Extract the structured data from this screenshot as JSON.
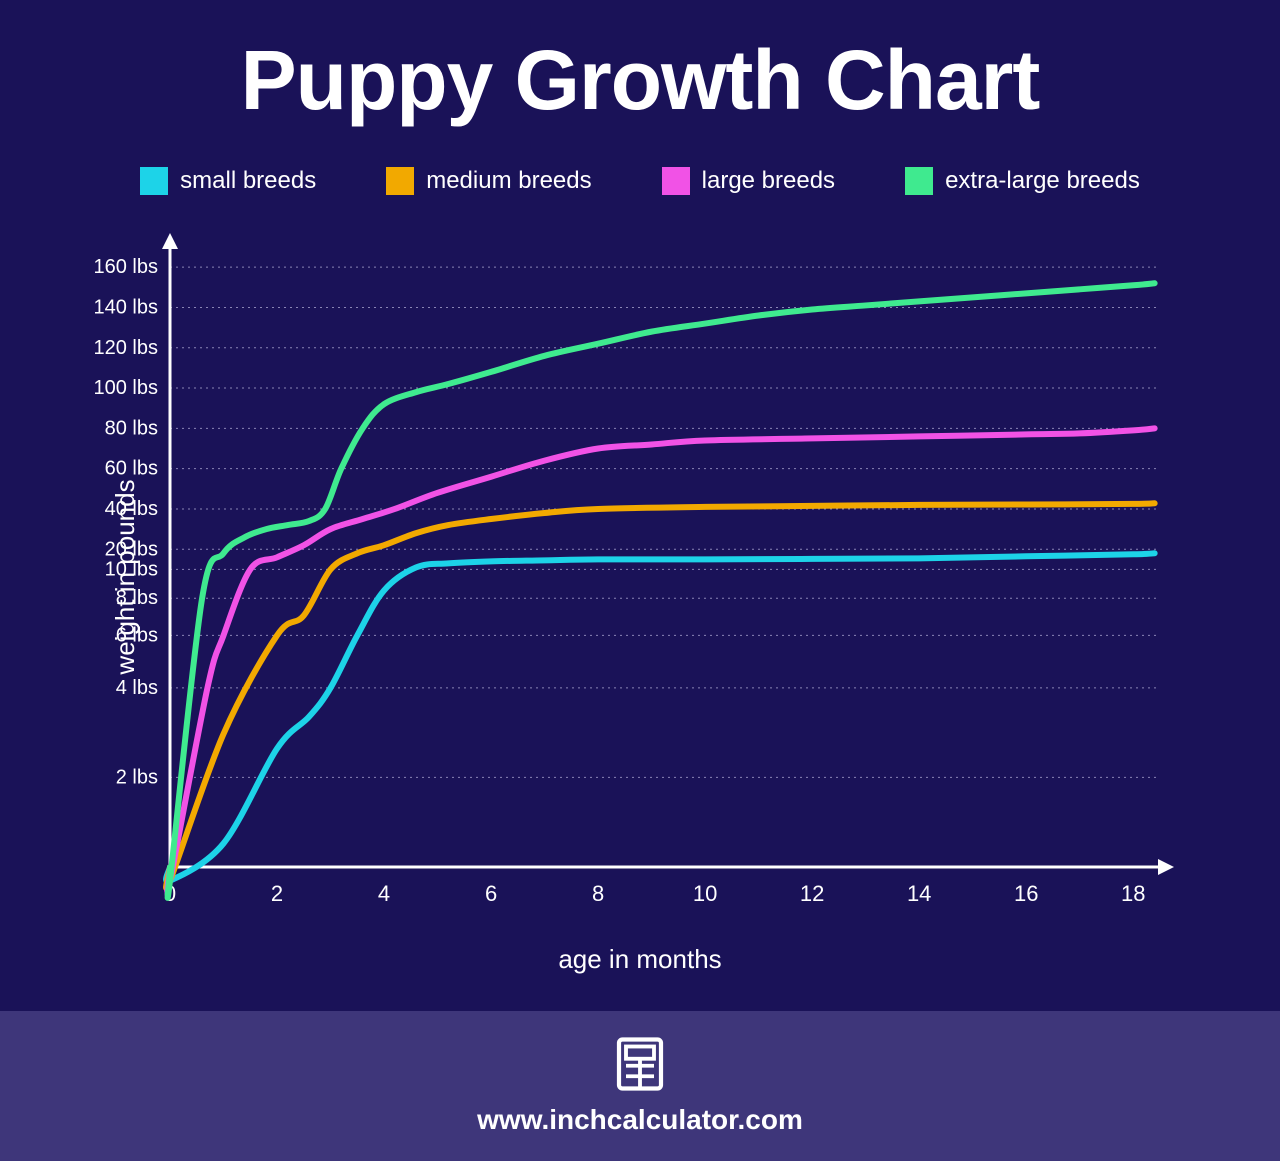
{
  "title": "Puppy Growth Chart",
  "background_color": "#1a1258",
  "footer_background_color": "#3e367a",
  "text_color": "#ffffff",
  "grid_color": "#8a85b5",
  "axis_color": "#ffffff",
  "chart": {
    "type": "line",
    "xlabel": "age in months",
    "ylabel": "weight in pounds",
    "x_ticks": [
      0,
      2,
      4,
      6,
      8,
      10,
      12,
      14,
      16,
      18
    ],
    "x_min": 0,
    "x_max": 18.5,
    "y_ticks": [
      2,
      4,
      6,
      8,
      10,
      20,
      40,
      60,
      80,
      100,
      120,
      140,
      160
    ],
    "y_tick_labels": [
      "2 lbs",
      "4 lbs",
      "6 lbs",
      "8 lbs",
      "10 lbs",
      "20 lbs",
      "40 lbs",
      "60 lbs",
      "80 lbs",
      "100 lbs",
      "120 lbs",
      "140 lbs",
      "160 lbs"
    ],
    "y_scale": "log_with_linear_top",
    "line_width": 6,
    "series": [
      {
        "name": "small breeds",
        "color": "#1dd3e8",
        "points": [
          [
            0,
            0.5
          ],
          [
            1,
            1.2
          ],
          [
            2,
            2.5
          ],
          [
            2.6,
            3.2
          ],
          [
            3,
            4
          ],
          [
            3.5,
            6
          ],
          [
            4,
            8.5
          ],
          [
            4.6,
            11
          ],
          [
            5.2,
            13
          ],
          [
            6,
            14
          ],
          [
            7,
            14.5
          ],
          [
            8,
            15
          ],
          [
            10,
            15
          ],
          [
            12,
            15.2
          ],
          [
            14,
            15.5
          ],
          [
            16,
            16.5
          ],
          [
            18,
            17.5
          ],
          [
            18.4,
            18
          ]
        ]
      },
      {
        "name": "medium breeds",
        "color": "#f2a900",
        "points": [
          [
            0,
            0.5
          ],
          [
            1,
            2.8
          ],
          [
            2,
            6
          ],
          [
            2.5,
            7
          ],
          [
            3,
            10
          ],
          [
            3.5,
            18
          ],
          [
            4,
            22
          ],
          [
            4.6,
            28
          ],
          [
            5.2,
            32
          ],
          [
            6,
            35
          ],
          [
            7,
            38
          ],
          [
            8,
            40
          ],
          [
            10,
            41
          ],
          [
            12,
            41.5
          ],
          [
            14,
            42
          ],
          [
            16,
            42.2
          ],
          [
            18,
            42.5
          ],
          [
            18.4,
            42.8
          ]
        ]
      },
      {
        "name": "large breeds",
        "color": "#f152e6",
        "points": [
          [
            0,
            0.5
          ],
          [
            0.7,
            4
          ],
          [
            1,
            6
          ],
          [
            1.5,
            10
          ],
          [
            2,
            16
          ],
          [
            2.5,
            22
          ],
          [
            3,
            30
          ],
          [
            3.6,
            35
          ],
          [
            4.2,
            40
          ],
          [
            5,
            48
          ],
          [
            6,
            56
          ],
          [
            7,
            64
          ],
          [
            8,
            70
          ],
          [
            9,
            72
          ],
          [
            10,
            74
          ],
          [
            12,
            75
          ],
          [
            14,
            76
          ],
          [
            16,
            77
          ],
          [
            17,
            77.5
          ],
          [
            18,
            79
          ],
          [
            18.4,
            80
          ]
        ]
      },
      {
        "name": "extra-large breeds",
        "color": "#3fea8f",
        "points": [
          [
            0,
            0.5
          ],
          [
            0.6,
            8
          ],
          [
            1,
            18
          ],
          [
            1.4,
            26
          ],
          [
            1.8,
            30
          ],
          [
            2.2,
            32
          ],
          [
            2.6,
            34
          ],
          [
            2.9,
            40
          ],
          [
            3.2,
            60
          ],
          [
            3.6,
            80
          ],
          [
            4,
            92
          ],
          [
            4.6,
            98
          ],
          [
            5.2,
            102
          ],
          [
            6,
            108
          ],
          [
            7,
            116
          ],
          [
            8,
            122
          ],
          [
            9,
            128
          ],
          [
            10,
            132
          ],
          [
            11,
            136
          ],
          [
            12,
            139
          ],
          [
            13,
            141
          ],
          [
            14,
            143
          ],
          [
            15,
            145
          ],
          [
            16,
            147
          ],
          [
            17,
            149
          ],
          [
            18,
            151
          ],
          [
            18.4,
            152
          ]
        ]
      }
    ]
  },
  "legend": [
    {
      "label": "small breeds",
      "color": "#1dd3e8"
    },
    {
      "label": "medium breeds",
      "color": "#f2a900"
    },
    {
      "label": "large breeds",
      "color": "#f152e6"
    },
    {
      "label": "extra-large breeds",
      "color": "#3fea8f"
    }
  ],
  "footer": {
    "url_text": "www.inchcalculator.com",
    "icon": "calculator-icon"
  }
}
